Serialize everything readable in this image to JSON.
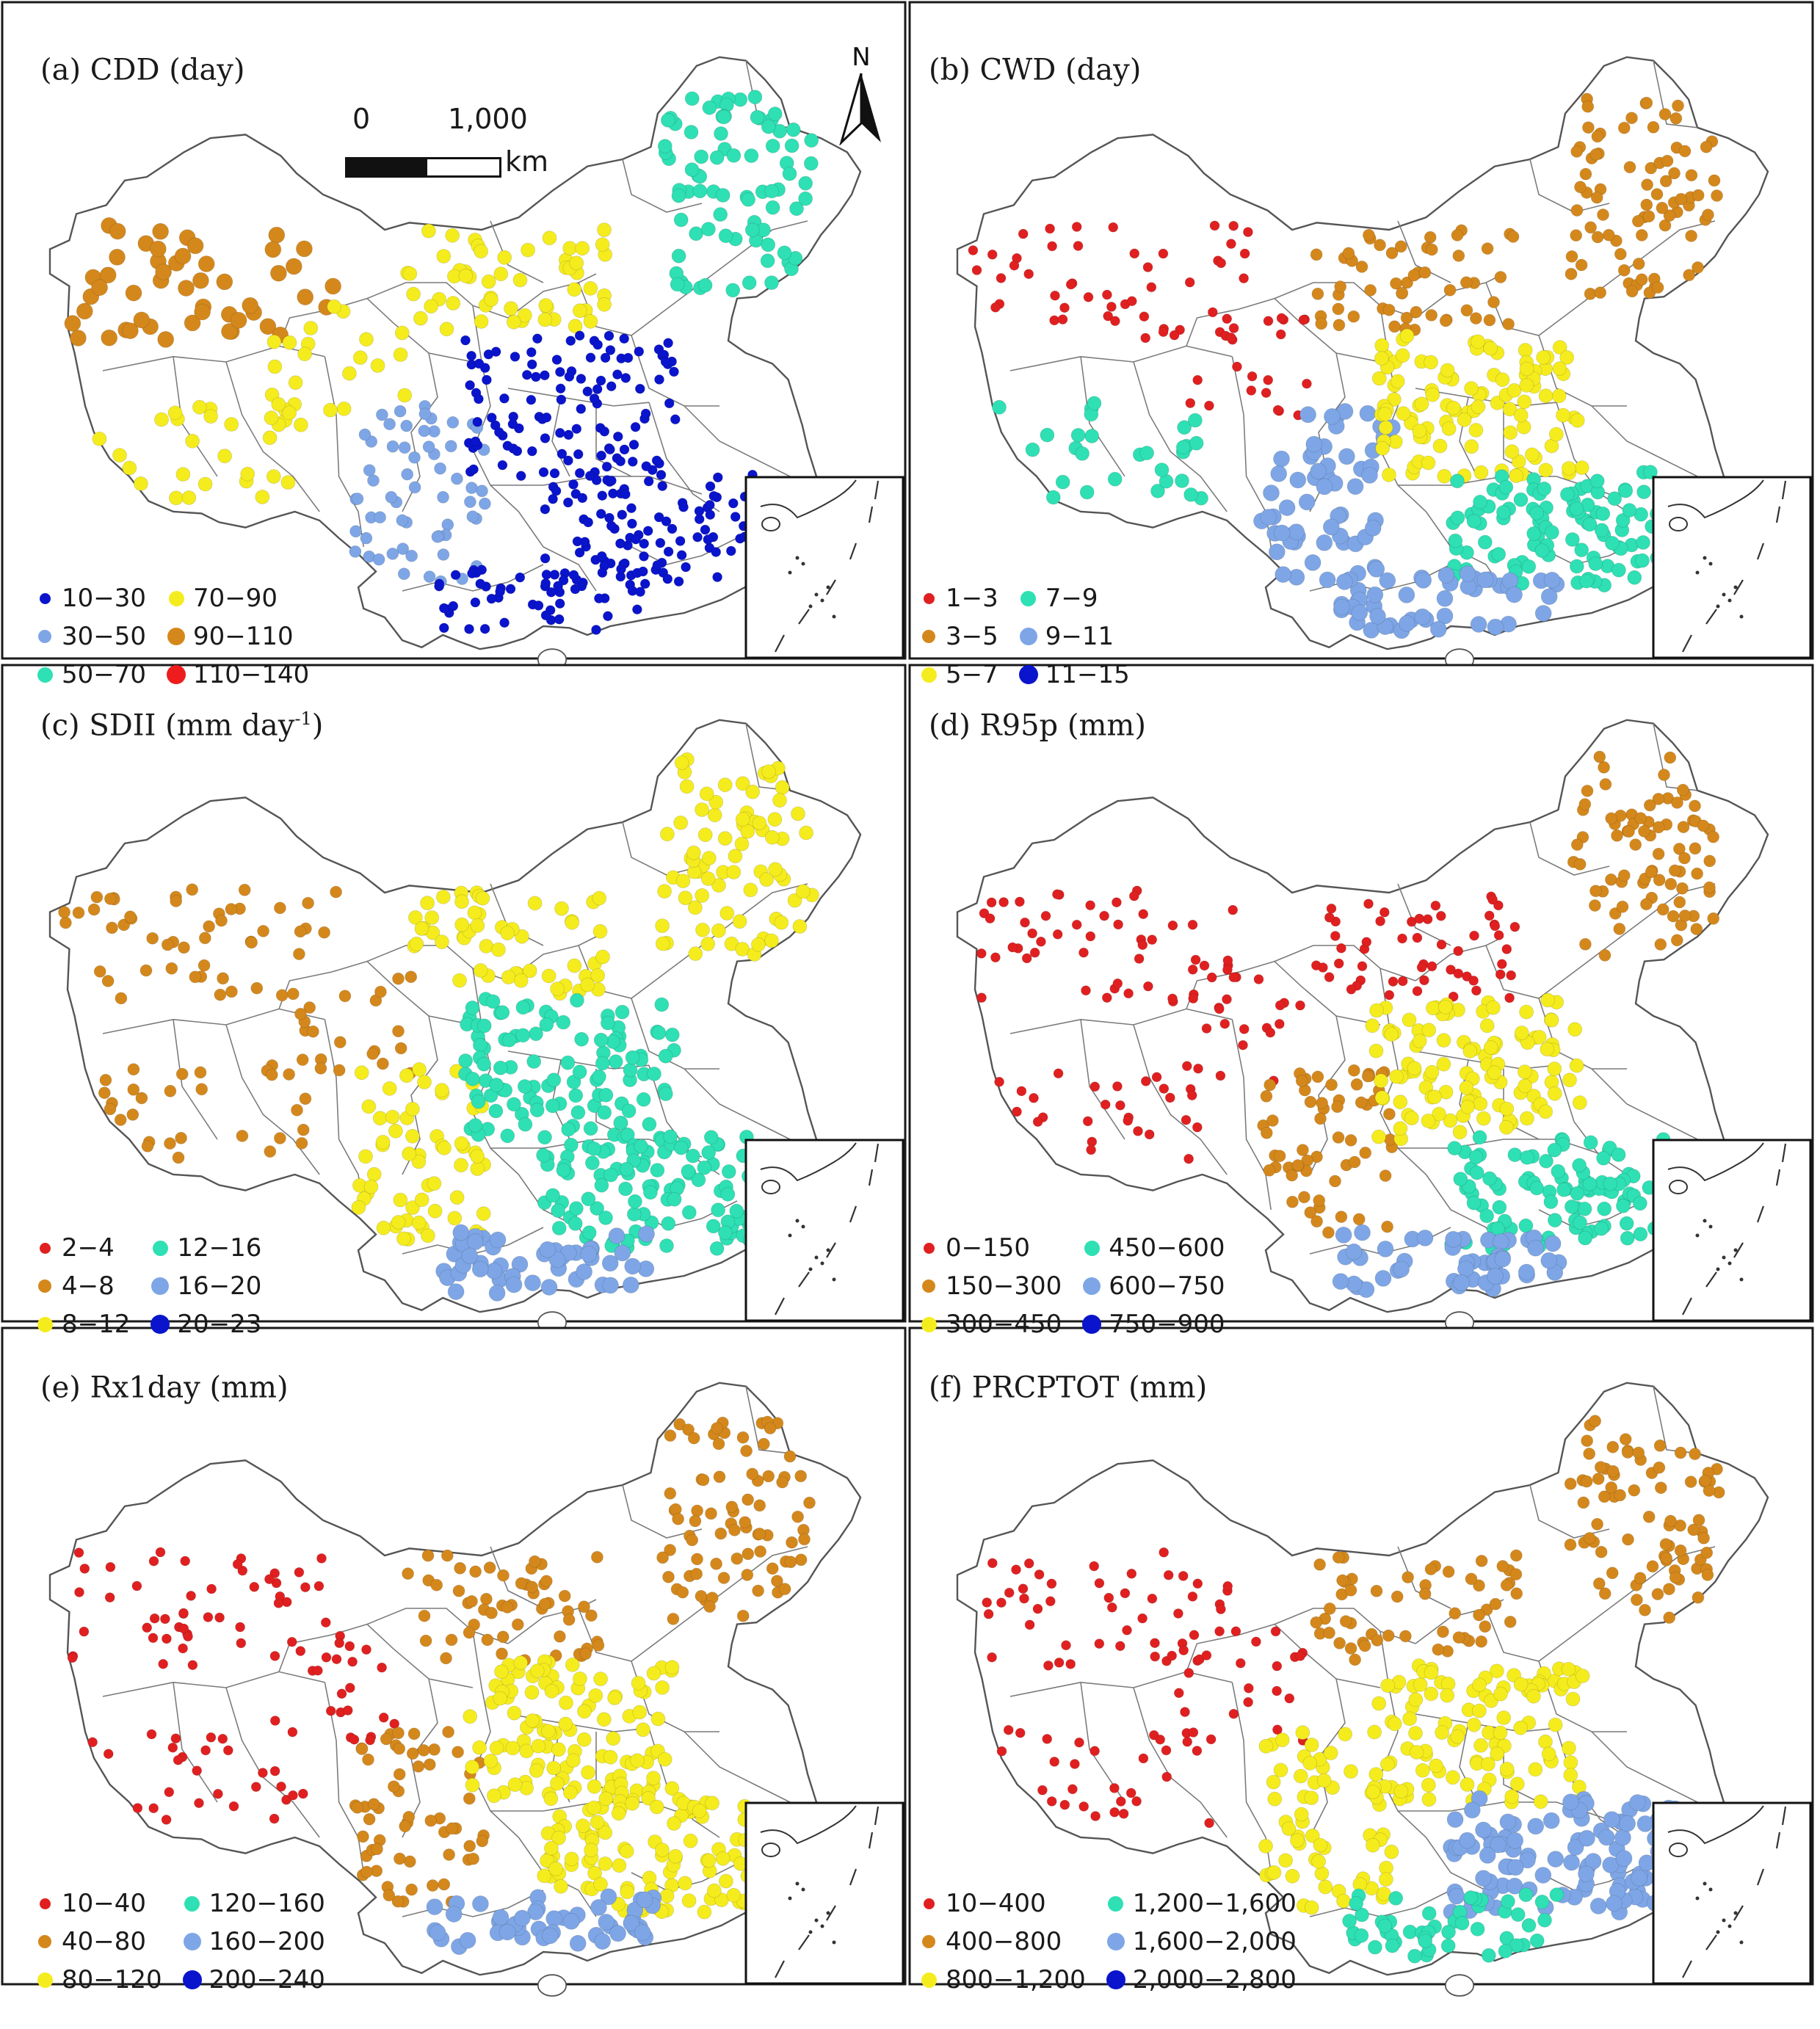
{
  "figure": {
    "scalebar": {
      "label_start": "0",
      "label_end": "1,000",
      "unit": "km"
    },
    "north_arrow": {
      "label": "N"
    }
  },
  "panels": [
    {
      "id": "a",
      "title": "(a) CDD (day)",
      "title_sup": "",
      "title_end": "",
      "legend": [
        {
          "label": "10−30",
          "color": "#0a14cc"
        },
        {
          "label": "30−50",
          "color": "#7ea6e6"
        },
        {
          "label": "50−70",
          "color": "#2ee0b4"
        },
        {
          "label": "70−90",
          "color": "#f5ec1e"
        },
        {
          "label": "90−110",
          "color": "#d4881c"
        },
        {
          "label": "110−140",
          "color": "#ee1c1c"
        }
      ],
      "zones": {
        "northwest": 4,
        "tibet": 3,
        "qinghai": 3,
        "north": 3,
        "northeast": 2,
        "southwest": 1,
        "central": 0,
        "southeast": 0,
        "south": 0
      }
    },
    {
      "id": "b",
      "title": "(b) CWD (day)",
      "title_sup": "",
      "title_end": "",
      "legend": [
        {
          "label": "1−3",
          "color": "#e02020"
        },
        {
          "label": "3−5",
          "color": "#d4881c"
        },
        {
          "label": "5−7",
          "color": "#f5ec1e"
        },
        {
          "label": "7−9",
          "color": "#2ee0b4"
        },
        {
          "label": "9−11",
          "color": "#7ea6e6"
        },
        {
          "label": "11−15",
          "color": "#0a14cc"
        }
      ],
      "zones": {
        "northwest": 0,
        "tibet": 3,
        "qinghai": 0,
        "north": 1,
        "northeast": 1,
        "southwest": 4,
        "central": 2,
        "southeast": 3,
        "south": 4
      }
    },
    {
      "id": "c",
      "title": "(c) SDII (mm day",
      "title_sup": "-1",
      "title_end": ")",
      "legend": [
        {
          "label": "2−4",
          "color": "#e02020"
        },
        {
          "label": "4−8",
          "color": "#d4881c"
        },
        {
          "label": "8−12",
          "color": "#f5ec1e"
        },
        {
          "label": "12−16",
          "color": "#2ee0b4"
        },
        {
          "label": "16−20",
          "color": "#7ea6e6"
        },
        {
          "label": "20−23",
          "color": "#0a14cc"
        }
      ],
      "zones": {
        "northwest": 1,
        "tibet": 1,
        "qinghai": 1,
        "north": 2,
        "northeast": 2,
        "southwest": 2,
        "central": 3,
        "southeast": 3,
        "south": 4
      }
    },
    {
      "id": "d",
      "title": "(d) R95p (mm)",
      "title_sup": "",
      "title_end": "",
      "legend": [
        {
          "label": "0−150",
          "color": "#e02020"
        },
        {
          "label": "150−300",
          "color": "#d4881c"
        },
        {
          "label": "300−450",
          "color": "#f5ec1e"
        },
        {
          "label": "450−600",
          "color": "#2ee0b4"
        },
        {
          "label": "600−750",
          "color": "#7ea6e6"
        },
        {
          "label": "750−900",
          "color": "#0a14cc"
        }
      ],
      "zones": {
        "northwest": 0,
        "tibet": 0,
        "qinghai": 0,
        "north": 0,
        "northeast": 1,
        "southwest": 1,
        "central": 2,
        "southeast": 3,
        "south": 4
      }
    },
    {
      "id": "e",
      "title": "(e) Rx1day (mm)",
      "title_sup": "",
      "title_end": "",
      "legend": [
        {
          "label": "10−40",
          "color": "#e02020"
        },
        {
          "label": "40−80",
          "color": "#d4881c"
        },
        {
          "label": "80−120",
          "color": "#f5ec1e"
        },
        {
          "label": "120−160",
          "color": "#2ee0b4"
        },
        {
          "label": "160−200",
          "color": "#7ea6e6"
        },
        {
          "label": "200−240",
          "color": "#0a14cc"
        }
      ],
      "zones": {
        "northwest": 0,
        "tibet": 0,
        "qinghai": 0,
        "north": 1,
        "northeast": 1,
        "southwest": 1,
        "central": 2,
        "southeast": 2,
        "south": 4
      }
    },
    {
      "id": "f",
      "title": "(f) PRCPTOT (mm)",
      "title_sup": "",
      "title_end": "",
      "legend": [
        {
          "label": "10−400",
          "color": "#e02020"
        },
        {
          "label": "400−800",
          "color": "#d4881c"
        },
        {
          "label": "800−1,200",
          "color": "#f5ec1e"
        },
        {
          "label": "1,200−1,600",
          "color": "#2ee0b4"
        },
        {
          "label": "1,600−2,000",
          "color": "#7ea6e6"
        },
        {
          "label": "2,000−2,800",
          "color": "#0a14cc"
        }
      ],
      "zones": {
        "northwest": 0,
        "tibet": 0,
        "qinghai": 0,
        "north": 1,
        "northeast": 1,
        "southwest": 2,
        "central": 2,
        "southeast": 4,
        "south": 3
      }
    }
  ]
}
